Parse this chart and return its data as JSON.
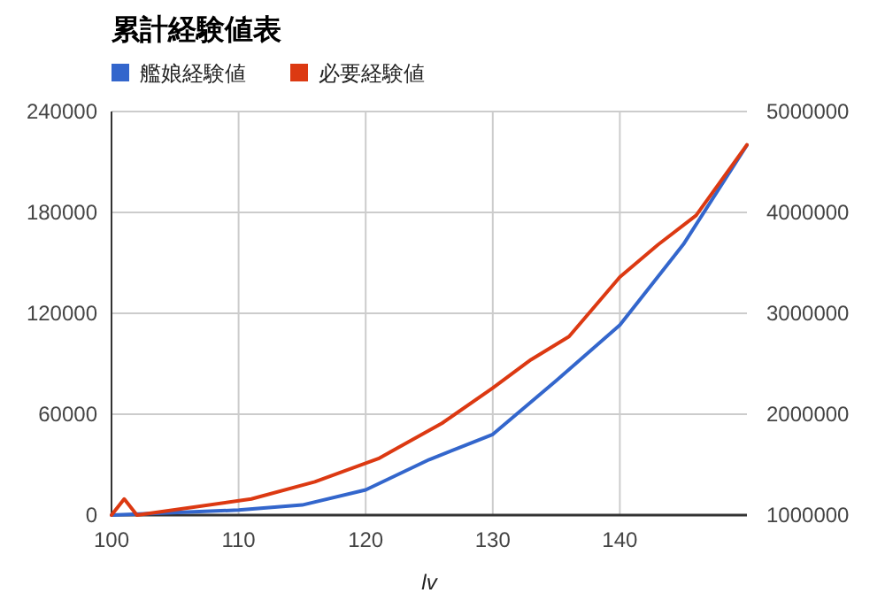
{
  "chart_data": {
    "type": "line",
    "title": "累計経験値表",
    "xlabel": "lv",
    "xlim": [
      100,
      150
    ],
    "xticks": [
      100,
      110,
      120,
      130,
      140
    ],
    "ylim": [
      0,
      240000
    ],
    "yticks": [
      0,
      60000,
      120000,
      180000,
      240000
    ],
    "y2lim": [
      1000000,
      5000000
    ],
    "y2ticks": [
      1000000,
      2000000,
      3000000,
      4000000,
      5000000
    ],
    "grid": true,
    "legend": "top",
    "series": [
      {
        "name": "艦娘経験値",
        "color": "#3366cc",
        "x": [
          100,
          110,
          115,
          120,
          125,
          130,
          135,
          140,
          145,
          150
        ],
        "values": [
          0,
          3000,
          6000,
          15000,
          33000,
          48000,
          80000,
          113000,
          161000,
          220000
        ]
      },
      {
        "name": "必要経験値",
        "color": "#dc3912",
        "axis": "y2",
        "x": [
          100,
          101,
          102,
          111,
          116,
          121,
          126,
          130,
          133,
          136,
          140,
          143,
          146,
          150
        ],
        "values": [
          1000000,
          1160000,
          1000000,
          1160000,
          1330000,
          1560000,
          1910000,
          2260000,
          2540000,
          2770000,
          3360000,
          3680000,
          3970000,
          4670000
        ]
      }
    ]
  }
}
